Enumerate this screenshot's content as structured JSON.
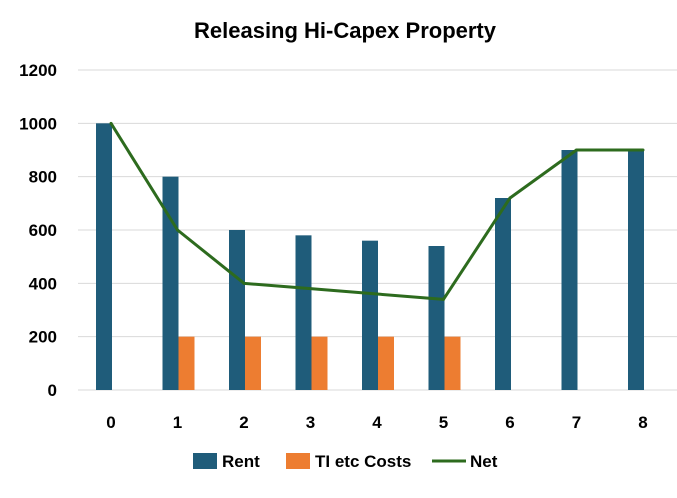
{
  "chart_data": {
    "type": "bar",
    "title": "Releasing Hi-Capex Property",
    "categories": [
      "0",
      "1",
      "2",
      "3",
      "4",
      "5",
      "6",
      "7",
      "8"
    ],
    "series": [
      {
        "name": "Rent",
        "type": "bar",
        "values": [
          1000,
          800,
          600,
          580,
          560,
          540,
          720,
          900,
          900
        ]
      },
      {
        "name": "TI etc Costs",
        "type": "bar",
        "values": [
          0,
          200,
          200,
          200,
          200,
          200,
          0,
          0,
          0
        ]
      },
      {
        "name": "Net",
        "type": "line",
        "values": [
          1000,
          600,
          400,
          380,
          360,
          340,
          720,
          900,
          900
        ]
      }
    ],
    "ylim": [
      0,
      1200
    ],
    "yticks": [
      0,
      200,
      400,
      600,
      800,
      1000,
      1200
    ],
    "grid": true,
    "legend": "bottom",
    "colors": {
      "Rent": "#1f5c7a",
      "TI etc Costs": "#ed7d31",
      "Net": "#2d6b1e",
      "grid": "#d9d9d9"
    }
  }
}
